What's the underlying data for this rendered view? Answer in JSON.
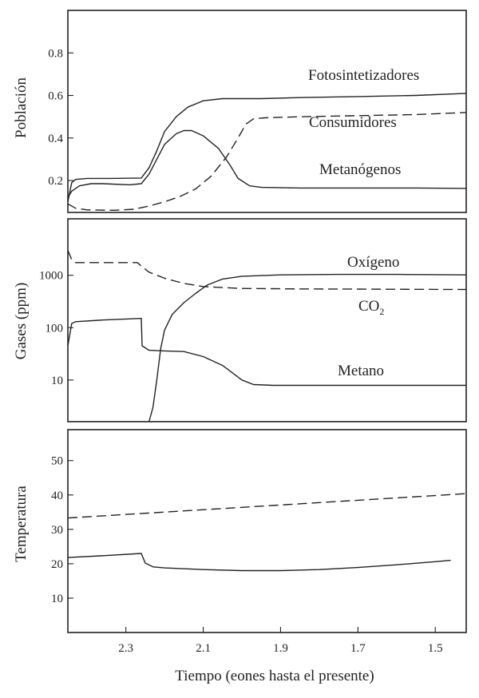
{
  "chart_data": [
    {
      "type": "line",
      "ylabel": "Población",
      "x_direction": "descending",
      "xlim": [
        2.45,
        1.42
      ],
      "ylim": [
        0.05,
        1.0
      ],
      "yticks": [
        0.2,
        0.4,
        0.6,
        0.8
      ],
      "grid": false,
      "series": [
        {
          "name": "Fotosintetizadores",
          "style": "solid",
          "points": [
            [
              2.45,
              0.1
            ],
            [
              2.44,
              0.19
            ],
            [
              2.43,
              0.205
            ],
            [
              2.4,
              0.21
            ],
            [
              2.34,
              0.21
            ],
            [
              2.26,
              0.212
            ],
            [
              2.24,
              0.26
            ],
            [
              2.22,
              0.34
            ],
            [
              2.2,
              0.43
            ],
            [
              2.17,
              0.5
            ],
            [
              2.14,
              0.545
            ],
            [
              2.1,
              0.575
            ],
            [
              2.05,
              0.585
            ],
            [
              1.95,
              0.585
            ],
            [
              1.85,
              0.59
            ],
            [
              1.7,
              0.595
            ],
            [
              1.55,
              0.6
            ],
            [
              1.42,
              0.61
            ]
          ]
        },
        {
          "name": "Consumidores",
          "style": "dashed",
          "points": [
            [
              2.45,
              0.09
            ],
            [
              2.43,
              0.07
            ],
            [
              2.4,
              0.062
            ],
            [
              2.33,
              0.06
            ],
            [
              2.28,
              0.065
            ],
            [
              2.24,
              0.08
            ],
            [
              2.2,
              0.1
            ],
            [
              2.16,
              0.125
            ],
            [
              2.12,
              0.16
            ],
            [
              2.08,
              0.22
            ],
            [
              2.04,
              0.31
            ],
            [
              2.01,
              0.4
            ],
            [
              1.99,
              0.465
            ],
            [
              1.97,
              0.49
            ],
            [
              1.94,
              0.495
            ],
            [
              1.85,
              0.5
            ],
            [
              1.7,
              0.505
            ],
            [
              1.55,
              0.51
            ],
            [
              1.42,
              0.52
            ]
          ]
        },
        {
          "name": "Metanógenos",
          "style": "solid",
          "points": [
            [
              2.45,
              0.12
            ],
            [
              2.44,
              0.15
            ],
            [
              2.42,
              0.175
            ],
            [
              2.39,
              0.185
            ],
            [
              2.36,
              0.185
            ],
            [
              2.29,
              0.18
            ],
            [
              2.26,
              0.185
            ],
            [
              2.24,
              0.23
            ],
            [
              2.22,
              0.3
            ],
            [
              2.2,
              0.37
            ],
            [
              2.17,
              0.42
            ],
            [
              2.15,
              0.435
            ],
            [
              2.13,
              0.435
            ],
            [
              2.1,
              0.41
            ],
            [
              2.06,
              0.35
            ],
            [
              2.03,
              0.27
            ],
            [
              2.01,
              0.21
            ],
            [
              1.98,
              0.175
            ],
            [
              1.95,
              0.168
            ],
            [
              1.85,
              0.165
            ],
            [
              1.7,
              0.165
            ],
            [
              1.55,
              0.165
            ],
            [
              1.42,
              0.163
            ]
          ]
        }
      ]
    },
    {
      "type": "line",
      "ylabel": "Gases (ppm)",
      "x_direction": "descending",
      "xlim": [
        2.45,
        1.42
      ],
      "yscale": "log",
      "ylim": [
        1.6,
        12000
      ],
      "yticks": [
        10,
        100,
        1000
      ],
      "grid": false,
      "series": [
        {
          "name": "Oxígeno",
          "style": "solid",
          "points": [
            [
              2.24,
              1.6
            ],
            [
              2.23,
              3
            ],
            [
              2.22,
              10
            ],
            [
              2.21,
              40
            ],
            [
              2.2,
              90
            ],
            [
              2.18,
              180
            ],
            [
              2.15,
              300
            ],
            [
              2.12,
              450
            ],
            [
              2.09,
              650
            ],
            [
              2.05,
              850
            ],
            [
              2.0,
              960
            ],
            [
              1.9,
              1020
            ],
            [
              1.75,
              1040
            ],
            [
              1.6,
              1040
            ],
            [
              1.42,
              1020
            ]
          ]
        },
        {
          "name": "CO2",
          "style": "dashed",
          "points": [
            [
              2.45,
              3000
            ],
            [
              2.44,
              2000
            ],
            [
              2.43,
              1750
            ],
            [
              2.35,
              1750
            ],
            [
              2.27,
              1750
            ],
            [
              2.26,
              1500
            ],
            [
              2.24,
              1150
            ],
            [
              2.2,
              880
            ],
            [
              2.15,
              700
            ],
            [
              2.1,
              610
            ],
            [
              2.0,
              560
            ],
            [
              1.85,
              550
            ],
            [
              1.7,
              545
            ],
            [
              1.55,
              540
            ],
            [
              1.42,
              535
            ]
          ]
        },
        {
          "name": "Metano",
          "style": "solid",
          "points": [
            [
              2.45,
              45
            ],
            [
              2.44,
              120
            ],
            [
              2.43,
              130
            ],
            [
              2.36,
              140
            ],
            [
              2.26,
              150
            ],
            [
              2.258,
              45
            ],
            [
              2.24,
              37
            ],
            [
              2.2,
              36
            ],
            [
              2.15,
              35
            ],
            [
              2.1,
              28
            ],
            [
              2.05,
              19
            ],
            [
              2.0,
              10
            ],
            [
              1.97,
              8.2
            ],
            [
              1.92,
              7.9
            ],
            [
              1.8,
              7.9
            ],
            [
              1.6,
              7.9
            ],
            [
              1.42,
              7.9
            ]
          ]
        }
      ]
    },
    {
      "type": "line",
      "ylabel": "Temperatura",
      "x_direction": "descending",
      "xlim": [
        2.45,
        1.42
      ],
      "ylim": [
        0,
        59
      ],
      "yticks": [
        10,
        20,
        30,
        40,
        50
      ],
      "grid": false,
      "series": [
        {
          "style": "dashed",
          "points": [
            [
              2.45,
              33.3
            ],
            [
              1.42,
              40.4
            ]
          ]
        },
        {
          "style": "solid",
          "points": [
            [
              2.45,
              21.8
            ],
            [
              2.35,
              22.4
            ],
            [
              2.26,
              23.0
            ],
            [
              2.25,
              20.2
            ],
            [
              2.23,
              19.1
            ],
            [
              2.2,
              18.8
            ],
            [
              2.1,
              18.3
            ],
            [
              2.0,
              18.0
            ],
            [
              1.9,
              18.0
            ],
            [
              1.8,
              18.3
            ],
            [
              1.7,
              18.9
            ],
            [
              1.6,
              19.7
            ],
            [
              1.5,
              20.6
            ],
            [
              1.46,
              21.0
            ]
          ]
        }
      ]
    }
  ],
  "labels": {
    "xlabel": "Tiempo (eones hasta el presente)",
    "xticks": [
      "2.3",
      "2.1",
      "1.9",
      "1.7",
      "1.5"
    ],
    "xtick_values": [
      2.3,
      2.1,
      1.9,
      1.7,
      1.5
    ],
    "panel1": {
      "ylabel": "Población",
      "ticks": [
        "0.2",
        "0.4",
        "0.6",
        "0.8"
      ],
      "series": [
        "Fotosintetizadores",
        "Consumidores",
        "Metanógenos"
      ]
    },
    "panel2": {
      "ylabel": "Gases (ppm)",
      "ticks": [
        "10",
        "100",
        "1000"
      ],
      "series": [
        "Oxígeno",
        "CO",
        "2",
        "Metano"
      ]
    },
    "panel3": {
      "ylabel": "Temperatura",
      "ticks": [
        "10",
        "20",
        "30",
        "40",
        "50"
      ]
    }
  }
}
